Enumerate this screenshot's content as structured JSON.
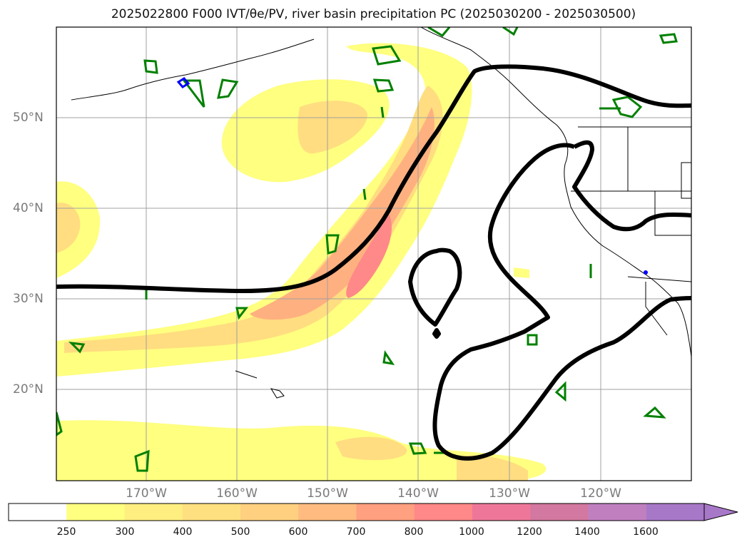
{
  "title": "2025022800 F000 IVT/θe/PV, river basin precipitation PC (2025030200 - 2025030500)",
  "map": {
    "longitude_labels": [
      "170°W",
      "160°W",
      "150°W",
      "140°W",
      "130°W",
      "120°W"
    ],
    "latitude_labels": [
      "50°N",
      "40°N",
      "30°N",
      "20°N"
    ],
    "contour_colors": {
      "theta_e_pv": "#000000",
      "river_basin_precip": "#008000",
      "blue_marker": "#0000ff"
    }
  },
  "colorbar": {
    "ticks": [
      "250",
      "300",
      "400",
      "500",
      "600",
      "700",
      "800",
      "1000",
      "1200",
      "1400",
      "1600"
    ],
    "colors": [
      "#ffffff",
      "#ffff80",
      "#ffee80",
      "#ffe080",
      "#ffd080",
      "#ffbb80",
      "#ffa080",
      "#ff8888",
      "#ee7799",
      "#d378a0",
      "#c080c0",
      "#a878c8",
      "#a878c8"
    ],
    "extend": "max"
  }
}
